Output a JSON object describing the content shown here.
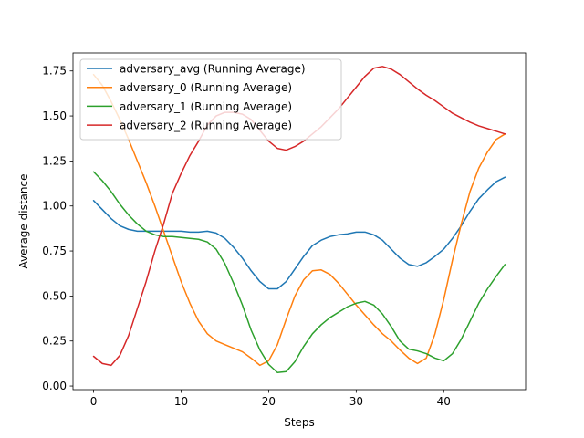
{
  "chart_data": {
    "type": "line",
    "title": "",
    "xlabel": "Steps",
    "ylabel": "Average distance",
    "xlim": [
      -2.35,
      49.35
    ],
    "ylim": [
      -0.02,
      1.85
    ],
    "xticks": [
      0,
      10,
      20,
      30,
      40
    ],
    "xtick_labels": [
      "0",
      "10",
      "20",
      "30",
      "40"
    ],
    "yticks": [
      0.0,
      0.25,
      0.5,
      0.75,
      1.0,
      1.25,
      1.5,
      1.75
    ],
    "ytick_labels": [
      "0.00",
      "0.25",
      "0.50",
      "0.75",
      "1.00",
      "1.25",
      "1.50",
      "1.75"
    ],
    "grid": false,
    "legend_position": "top-left",
    "x": [
      0,
      1,
      2,
      3,
      4,
      5,
      6,
      7,
      8,
      9,
      10,
      11,
      12,
      13,
      14,
      15,
      16,
      17,
      18,
      19,
      20,
      21,
      22,
      23,
      24,
      25,
      26,
      27,
      28,
      29,
      30,
      31,
      32,
      33,
      34,
      35,
      36,
      37,
      38,
      39,
      40,
      41,
      42,
      43,
      44,
      45,
      46,
      47
    ],
    "series": [
      {
        "name": "adversary_avg (Running Average)",
        "color": "#1f77b4",
        "values": [
          1.03,
          0.98,
          0.93,
          0.89,
          0.87,
          0.86,
          0.86,
          0.86,
          0.86,
          0.86,
          0.86,
          0.855,
          0.855,
          0.86,
          0.85,
          0.82,
          0.77,
          0.71,
          0.64,
          0.58,
          0.54,
          0.54,
          0.58,
          0.65,
          0.72,
          0.78,
          0.81,
          0.83,
          0.84,
          0.845,
          0.855,
          0.855,
          0.84,
          0.81,
          0.76,
          0.71,
          0.675,
          0.665,
          0.685,
          0.72,
          0.76,
          0.82,
          0.89,
          0.97,
          1.04,
          1.09,
          1.135,
          1.16
        ]
      },
      {
        "name": "adversary_0 (Running Average)",
        "color": "#ff7f0e",
        "values": [
          1.73,
          1.67,
          1.58,
          1.48,
          1.37,
          1.25,
          1.13,
          1.0,
          0.86,
          0.72,
          0.58,
          0.46,
          0.36,
          0.29,
          0.25,
          0.23,
          0.21,
          0.19,
          0.155,
          0.115,
          0.14,
          0.23,
          0.37,
          0.5,
          0.59,
          0.64,
          0.645,
          0.62,
          0.57,
          0.51,
          0.45,
          0.395,
          0.34,
          0.29,
          0.25,
          0.2,
          0.155,
          0.125,
          0.155,
          0.29,
          0.48,
          0.7,
          0.9,
          1.08,
          1.21,
          1.3,
          1.37,
          1.4
        ]
      },
      {
        "name": "adversary_1 (Running Average)",
        "color": "#2ca02c",
        "values": [
          1.19,
          1.14,
          1.08,
          1.01,
          0.95,
          0.9,
          0.86,
          0.84,
          0.83,
          0.83,
          0.825,
          0.82,
          0.815,
          0.8,
          0.76,
          0.68,
          0.57,
          0.45,
          0.31,
          0.2,
          0.12,
          0.075,
          0.08,
          0.135,
          0.22,
          0.29,
          0.34,
          0.38,
          0.41,
          0.44,
          0.46,
          0.47,
          0.45,
          0.4,
          0.33,
          0.25,
          0.205,
          0.195,
          0.18,
          0.155,
          0.14,
          0.18,
          0.26,
          0.36,
          0.46,
          0.54,
          0.61,
          0.675
        ]
      },
      {
        "name": "adversary_2 (Running Average)",
        "color": "#d62728",
        "values": [
          0.165,
          0.125,
          0.115,
          0.17,
          0.28,
          0.43,
          0.58,
          0.75,
          0.9,
          1.07,
          1.18,
          1.28,
          1.36,
          1.45,
          1.5,
          1.52,
          1.52,
          1.51,
          1.48,
          1.42,
          1.36,
          1.32,
          1.31,
          1.33,
          1.36,
          1.4,
          1.44,
          1.49,
          1.54,
          1.6,
          1.66,
          1.72,
          1.765,
          1.775,
          1.76,
          1.73,
          1.69,
          1.65,
          1.615,
          1.585,
          1.55,
          1.515,
          1.49,
          1.465,
          1.445,
          1.43,
          1.415,
          1.4
        ]
      }
    ]
  }
}
